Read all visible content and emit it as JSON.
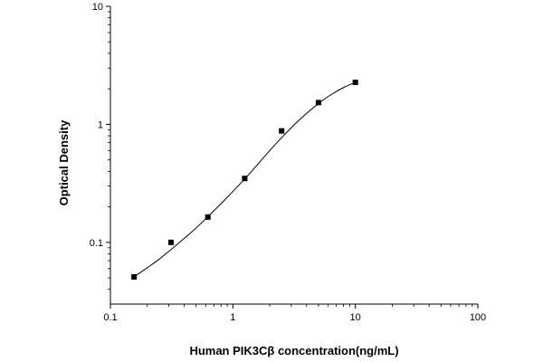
{
  "chart_data": {
    "type": "scatter",
    "xlabel": "Human PIK3Cβ  concentration(ng/mL)",
    "ylabel": "Optical Density",
    "x_scale": "log",
    "y_scale": "log",
    "xlim": [
      0.1,
      100
    ],
    "ylim": [
      0.03,
      10
    ],
    "x_ticks": [
      0.1,
      1,
      10,
      100
    ],
    "x_tick_labels": [
      "0.1",
      "1",
      "10",
      "100"
    ],
    "y_ticks": [
      0.1,
      1,
      10
    ],
    "y_tick_labels": [
      "0.1",
      "1",
      "10"
    ],
    "grid": false,
    "series": [
      {
        "x": [
          0.156,
          0.3125,
          0.625,
          1.25,
          2.5,
          5,
          10
        ],
        "y": [
          0.051,
          0.1,
          0.164,
          0.348,
          0.88,
          1.53,
          2.27
        ]
      }
    ],
    "fit_curve": {
      "x": [
        0.156,
        0.2,
        0.25,
        0.3125,
        0.4,
        0.5,
        0.625,
        0.8,
        1.0,
        1.25,
        1.6,
        2.0,
        2.5,
        3.2,
        4.0,
        5.0,
        6.3,
        8.0,
        10
      ],
      "y": [
        0.051,
        0.061,
        0.072,
        0.087,
        0.108,
        0.132,
        0.165,
        0.213,
        0.27,
        0.345,
        0.46,
        0.6,
        0.77,
        1.0,
        1.24,
        1.5,
        1.78,
        2.05,
        2.27
      ]
    }
  }
}
